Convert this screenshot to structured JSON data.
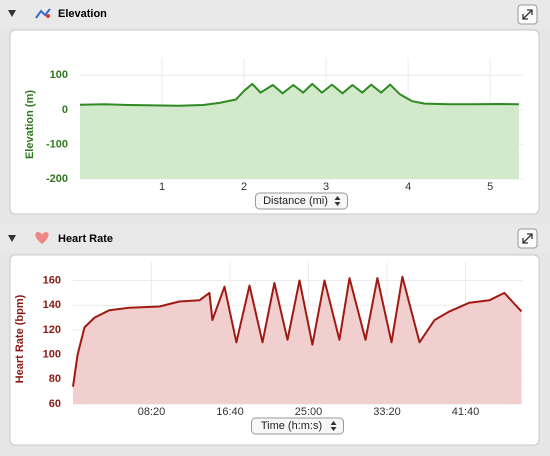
{
  "chart_data": [
    {
      "type": "area",
      "title": "Elevation",
      "y_label": "Elevation (m)",
      "x_label": "Distance (mi)",
      "color": "#2f8a22",
      "fill": "#d2e9cb",
      "axis_color": "#2f7a1e",
      "grid": true,
      "xlim": [
        0,
        5.4
      ],
      "xticks": [
        1,
        2,
        3,
        4,
        5
      ],
      "ylim": [
        -200,
        150
      ],
      "yticks": [
        -200,
        -100,
        0,
        100
      ],
      "x": [
        0,
        0.3,
        0.6,
        0.9,
        1.2,
        1.5,
        1.7,
        1.9,
        2.0,
        2.1,
        2.2,
        2.35,
        2.47,
        2.6,
        2.72,
        2.83,
        2.95,
        3.07,
        3.2,
        3.32,
        3.44,
        3.55,
        3.67,
        3.78,
        3.9,
        4.05,
        4.2,
        4.5,
        4.8,
        5.1,
        5.35
      ],
      "values": [
        15,
        16,
        14,
        13,
        12,
        14,
        20,
        30,
        55,
        75,
        50,
        72,
        48,
        72,
        50,
        75,
        50,
        73,
        48,
        72,
        50,
        73,
        50,
        73,
        45,
        25,
        18,
        16,
        16,
        17,
        16
      ]
    },
    {
      "type": "area",
      "title": "Heart Rate",
      "y_label": "Heart Rate (bpm)",
      "x_label": "Time (h:m:s)",
      "color": "#a01a14",
      "fill": "#f1cfcf",
      "axis_color": "#8a1a14",
      "grid": true,
      "xlim": [
        0,
        2860
      ],
      "xticks": [
        {
          "value": 500,
          "label": "08:20"
        },
        {
          "value": 1000,
          "label": "16:40"
        },
        {
          "value": 1500,
          "label": "25:00"
        },
        {
          "value": 2000,
          "label": "33:20"
        },
        {
          "value": 2500,
          "label": "41:40"
        }
      ],
      "ylim": [
        60,
        175
      ],
      "yticks": [
        60,
        80,
        100,
        120,
        140,
        160
      ],
      "x": [
        0,
        29,
        73,
        137,
        232,
        360,
        551,
        678,
        806,
        869,
        888,
        965,
        1041,
        1124,
        1207,
        1283,
        1366,
        1443,
        1525,
        1602,
        1697,
        1761,
        1863,
        1939,
        2029,
        2098,
        2207,
        2303,
        2398,
        2525,
        2652,
        2748,
        2812,
        2857
      ],
      "values": [
        74,
        100,
        122,
        130,
        136,
        138,
        139,
        143,
        144,
        150,
        128,
        155,
        110,
        156,
        110,
        158,
        112,
        160,
        108,
        160,
        112,
        162,
        112,
        162,
        110,
        163,
        110,
        128,
        135,
        142,
        144,
        150,
        141,
        135
      ]
    }
  ]
}
